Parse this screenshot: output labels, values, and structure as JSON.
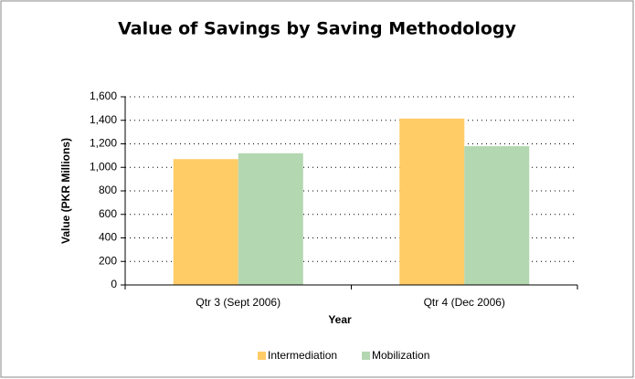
{
  "chart_data": {
    "type": "bar",
    "title": "Value of Savings by Saving Methodology",
    "x_label": "Year",
    "y_label": "Value  (PKR Millions)",
    "categories": [
      "Qtr 3 (Sept 2006)",
      "Qtr 4 (Dec 2006)"
    ],
    "series": [
      {
        "name": "Intermediation",
        "color": "#ffcc66",
        "values": [
          1070,
          1415
        ]
      },
      {
        "name": "Mobilization",
        "color": "#b3d7b1",
        "values": [
          1120,
          1180
        ]
      }
    ],
    "ylim": [
      0,
      1600
    ],
    "yticks": [
      0,
      200,
      400,
      600,
      800,
      {
        "value": 1000,
        "label": "1,000"
      },
      {
        "value": 1200,
        "label": "1,200"
      },
      {
        "value": 1400,
        "label": "1,400"
      },
      {
        "value": 1600,
        "label": "1,600"
      }
    ],
    "grid": true,
    "legend": "bottom"
  }
}
